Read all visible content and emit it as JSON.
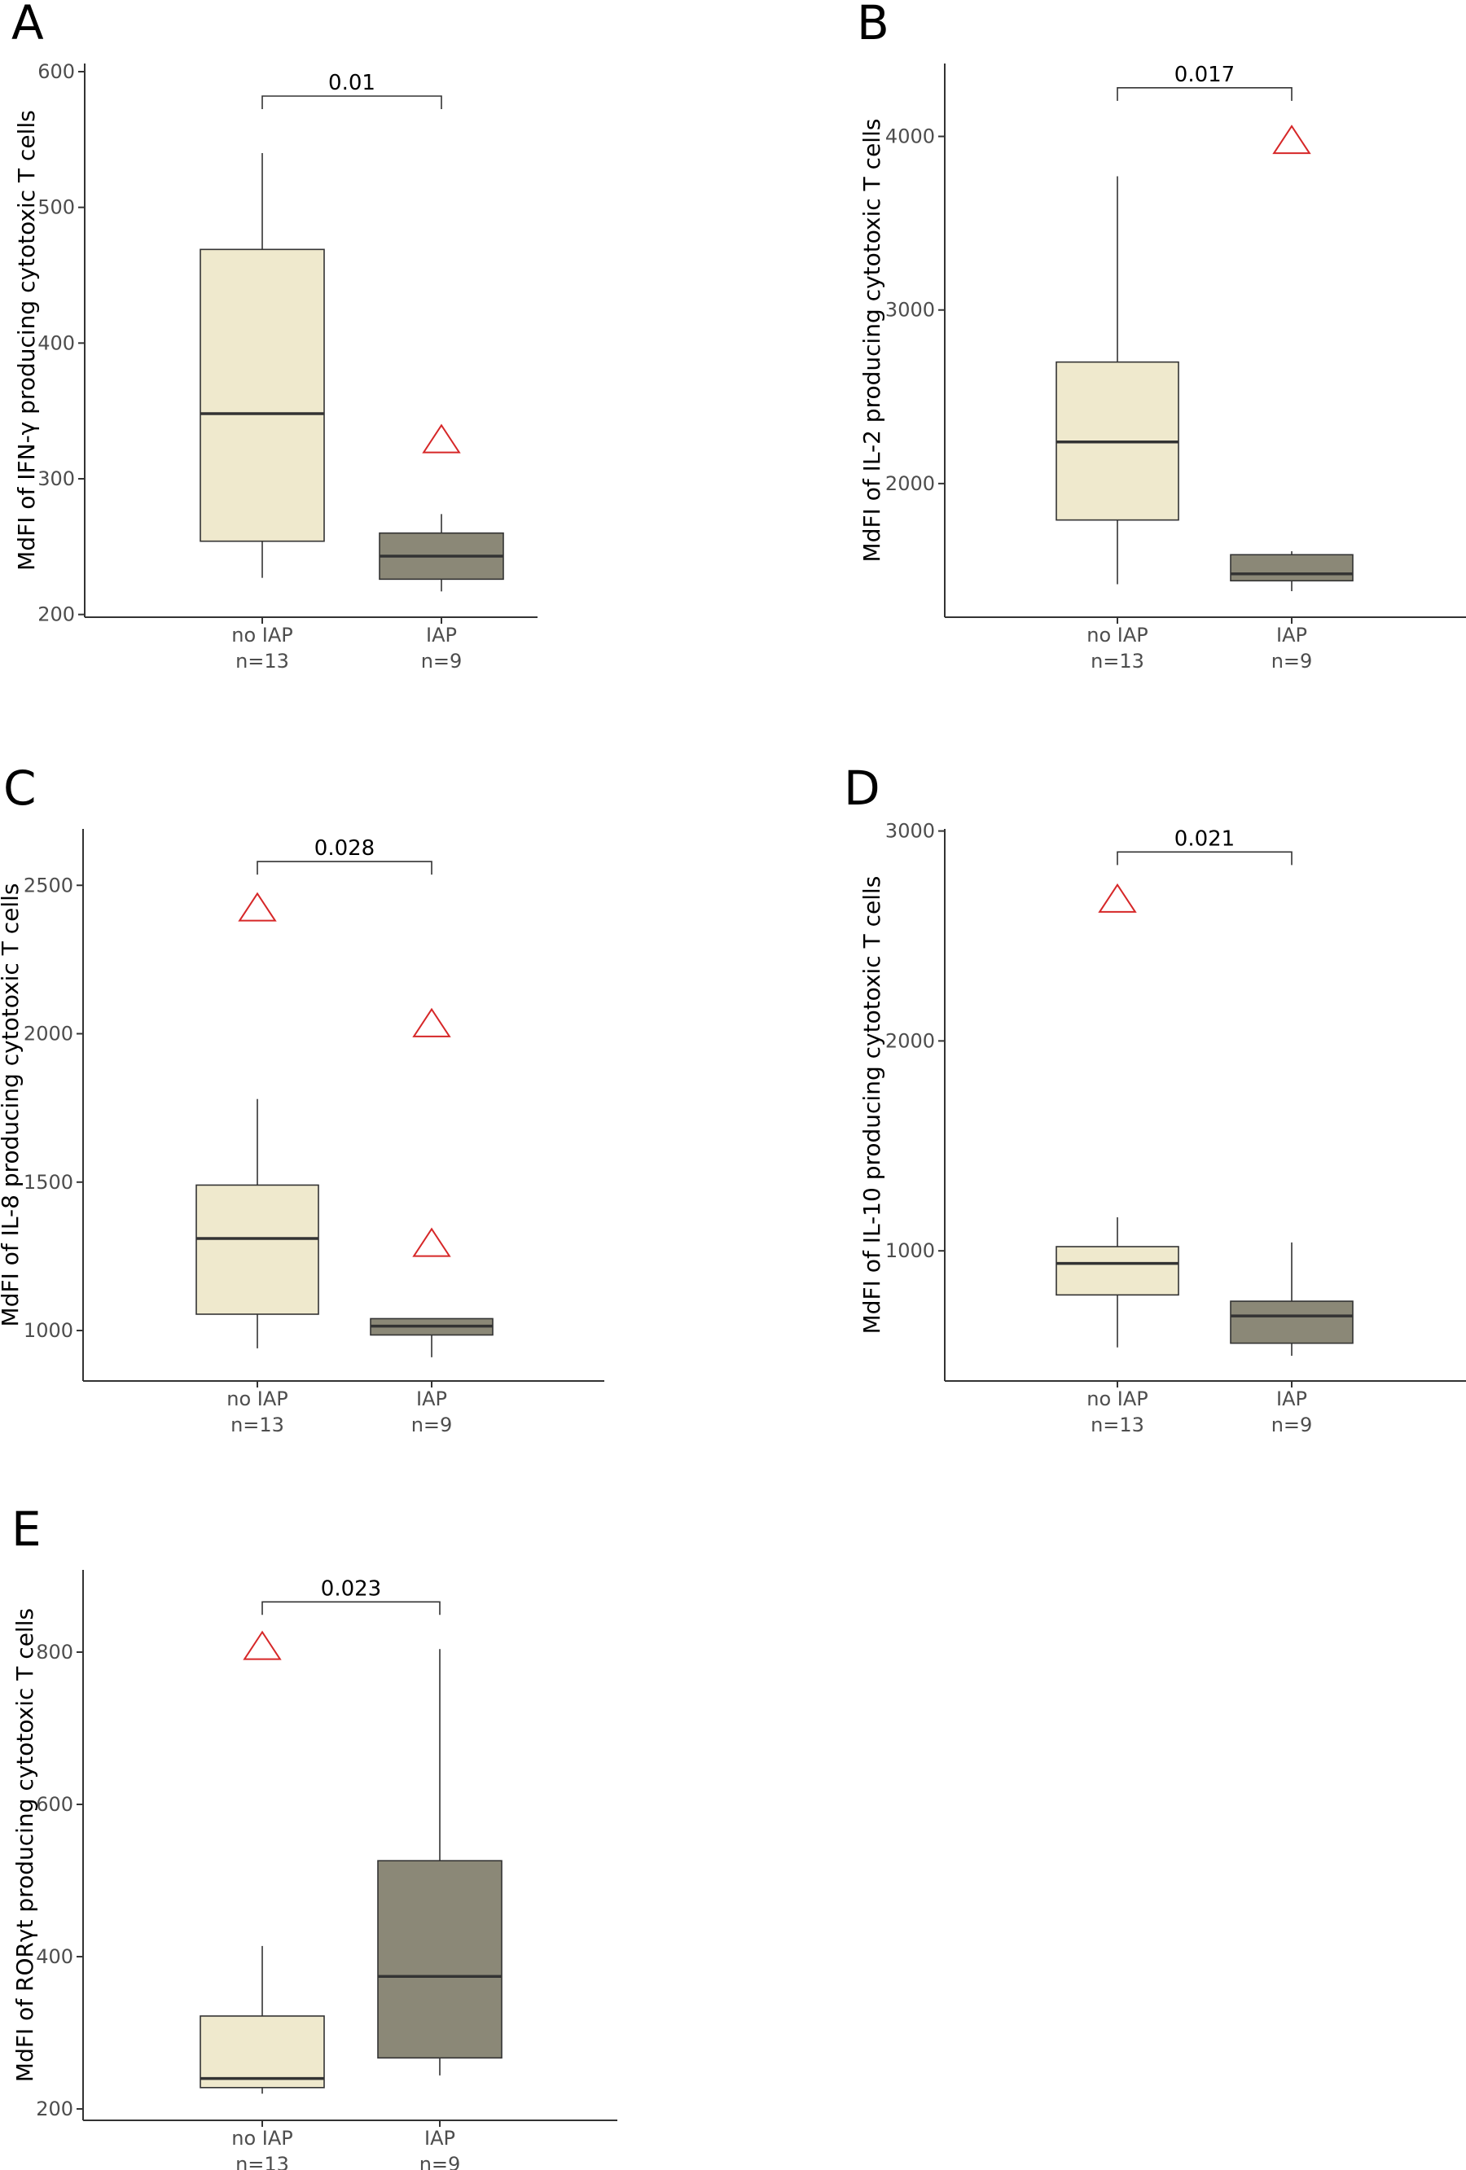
{
  "colors": {
    "no_iap_fill": "#efe9cd",
    "iap_fill": "#8b8877",
    "outlier": "#d62728",
    "axis": "#333333",
    "median": "#333333"
  },
  "chart_data": [
    {
      "panel": "A",
      "type": "box",
      "ylabel": "MdFI of IFN-γ producing cytotoxic T cells",
      "ylim": [
        198,
        606
      ],
      "yticks": [
        200,
        300,
        400,
        500,
        600
      ],
      "yticklabels": [
        "200",
        "300",
        "400",
        "500",
        "600"
      ],
      "pvalue": "0.01",
      "bracket_y": 582,
      "groups": [
        {
          "label": "no IAP",
          "n_label": "n=13",
          "min": 227,
          "q1": 254,
          "median": 348,
          "q3": 469,
          "max": 540,
          "outliers": []
        },
        {
          "label": "IAP",
          "n_label": "n=9",
          "min": 217,
          "q1": 226,
          "median": 243,
          "q3": 260,
          "max": 274,
          "outliers": [
            328
          ]
        }
      ]
    },
    {
      "panel": "B",
      "type": "box",
      "ylabel": "MdFI of IL-2 producing cytotoxic T cells",
      "ylim": [
        1230,
        4420
      ],
      "yticks": [
        2000,
        3000,
        4000
      ],
      "yticklabels": [
        "2000",
        "3000",
        "4000"
      ],
      "pvalue": "0.017",
      "bracket_y": 4280,
      "groups": [
        {
          "label": "no IAP",
          "n_label": "n=13",
          "min": 1420,
          "q1": 1790,
          "median": 2240,
          "q3": 2700,
          "max": 3770,
          "outliers": []
        },
        {
          "label": "IAP",
          "n_label": "n=9",
          "min": 1380,
          "q1": 1440,
          "median": 1480,
          "q3": 1590,
          "max": 1610,
          "outliers": [
            3970
          ]
        }
      ]
    },
    {
      "panel": "C",
      "type": "box",
      "ylabel": "MdFI of IL-8 producing cytotoxic T cells",
      "ylim": [
        830,
        2690
      ],
      "yticks": [
        1000,
        1500,
        2000,
        2500
      ],
      "yticklabels": [
        "1000",
        "1500",
        "2000",
        "2500"
      ],
      "pvalue": "0.028",
      "bracket_y": 2580,
      "groups": [
        {
          "label": "no IAP",
          "n_label": "n=13",
          "min": 940,
          "q1": 1055,
          "median": 1310,
          "q3": 1490,
          "max": 1780,
          "outliers": [
            2420
          ]
        },
        {
          "label": "IAP",
          "n_label": "n=9",
          "min": 910,
          "q1": 985,
          "median": 1015,
          "q3": 1040,
          "max": 1040,
          "outliers": [
            2030,
            1290
          ]
        }
      ]
    },
    {
      "panel": "D",
      "type": "box",
      "ylabel": "MdFI of IL-10 producing cytotoxic T cells",
      "ylim": [
        380,
        3010
      ],
      "yticks": [
        1000,
        2000,
        3000
      ],
      "yticklabels": [
        "1000",
        "2000",
        "3000"
      ],
      "pvalue": "0.021",
      "bracket_y": 2900,
      "groups": [
        {
          "label": "no IAP",
          "n_label": "n=13",
          "min": 540,
          "q1": 790,
          "median": 940,
          "q3": 1020,
          "max": 1160,
          "outliers": [
            2670
          ]
        },
        {
          "label": "IAP",
          "n_label": "n=9",
          "min": 500,
          "q1": 560,
          "median": 690,
          "q3": 760,
          "max": 1040,
          "outliers": []
        }
      ]
    },
    {
      "panel": "E",
      "type": "box",
      "ylabel": "MdFI of RORγt producing cytotoxic T cells",
      "ylim": [
        185,
        908
      ],
      "yticks": [
        200,
        400,
        600,
        800
      ],
      "yticklabels": [
        "200",
        "400",
        "600",
        "800"
      ],
      "pvalue": "0.023",
      "bracket_y": 866,
      "groups": [
        {
          "label": "no IAP",
          "n_label": "n=13",
          "min": 220,
          "q1": 228,
          "median": 240,
          "q3": 322,
          "max": 414,
          "outliers": [
            806
          ]
        },
        {
          "label": "IAP",
          "n_label": "n=9",
          "min": 244,
          "q1": 267,
          "median": 374,
          "q3": 526,
          "max": 804,
          "outliers": []
        }
      ]
    }
  ]
}
